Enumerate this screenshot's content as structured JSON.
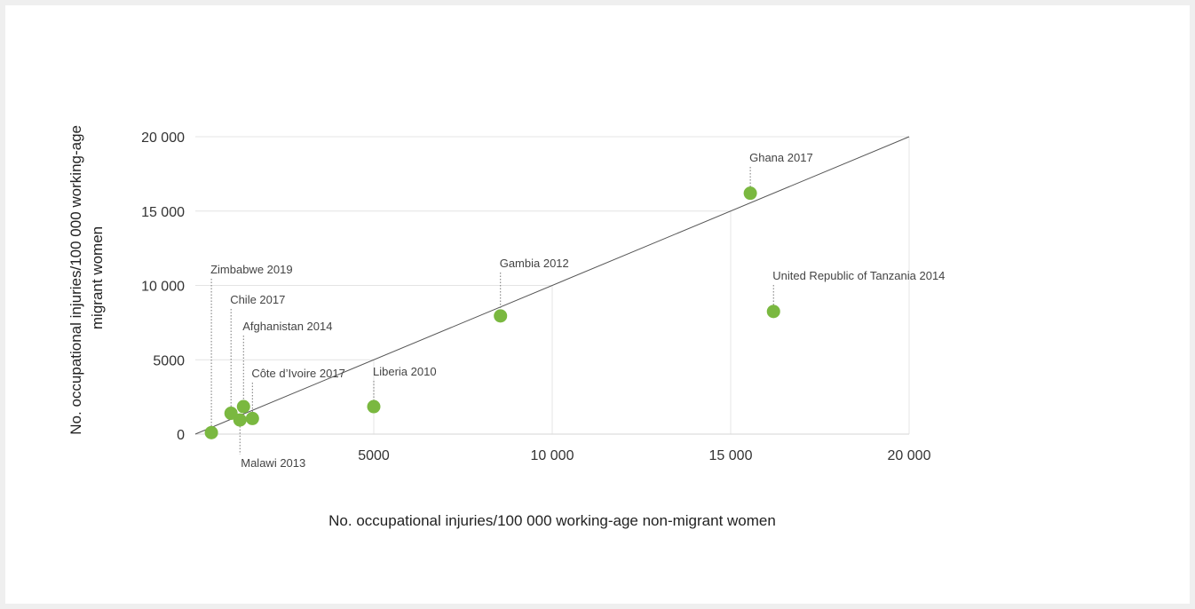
{
  "chart_data": {
    "type": "scatter",
    "xlabel": "No. occupational injuries/100 000 working-age non-migrant women",
    "ylabel_lines": [
      "No. occupational injuries/100 000 working-age",
      "migrant women"
    ],
    "xlim": [
      0,
      20000
    ],
    "ylim": [
      0,
      20000
    ],
    "x_ticks": [
      5000,
      10000,
      15000,
      20000
    ],
    "x_tick_labels": [
      "5000",
      "10 000",
      "15 000",
      "20 000"
    ],
    "y_ticks": [
      0,
      5000,
      10000,
      15000,
      20000
    ],
    "y_tick_labels": [
      "0",
      "5000",
      "10 000",
      "15 000",
      "20 000"
    ],
    "reference_line": {
      "from": [
        0,
        0
      ],
      "to": [
        20000,
        20000
      ]
    },
    "grid": "partial vertical and horizontal gridlines",
    "point_color": "#7ab840",
    "points": [
      {
        "label": "Zimbabwe 2019",
        "x": 450,
        "y": 100,
        "label_pos": "above"
      },
      {
        "label": "Chile 2017",
        "x": 1000,
        "y": 1400,
        "label_pos": "above"
      },
      {
        "label": "Afghanistan 2014",
        "x": 1350,
        "y": 1850,
        "label_pos": "above"
      },
      {
        "label": "Côte d’Ivoire 2017",
        "x": 1600,
        "y": 1050,
        "label_pos": "above"
      },
      {
        "label": "Malawi 2013",
        "x": 1250,
        "y": 950,
        "label_pos": "below"
      },
      {
        "label": "Liberia 2010",
        "x": 5000,
        "y": 1850,
        "label_pos": "above"
      },
      {
        "label": "Gambia 2012",
        "x": 8550,
        "y": 7950,
        "label_pos": "above"
      },
      {
        "label": "Ghana 2017",
        "x": 15550,
        "y": 16200,
        "label_pos": "above"
      },
      {
        "label": "United Republic of Tanzania 2014",
        "x": 16200,
        "y": 8250,
        "label_pos": "above"
      }
    ]
  }
}
